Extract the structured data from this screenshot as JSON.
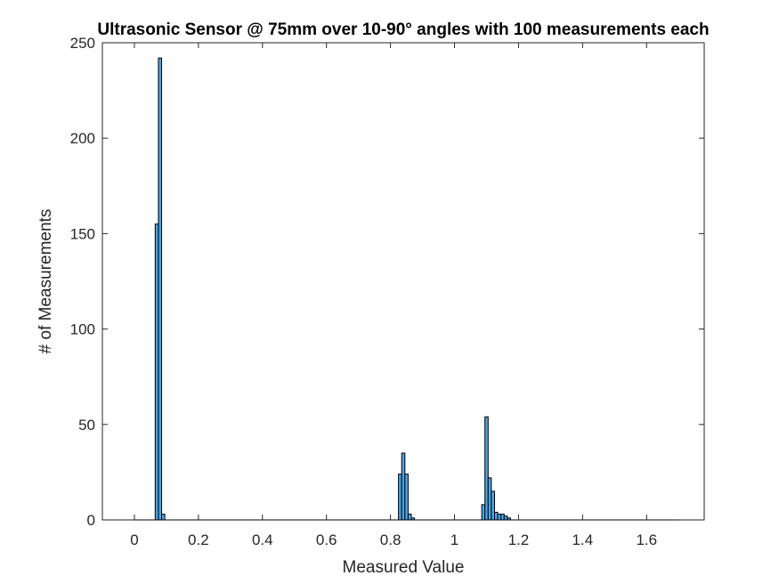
{
  "chart_data": {
    "type": "bar",
    "title": "Ultrasonic Sensor @ 75mm over 10-90° angles with 100 measurements each",
    "xlabel": "Measured Value",
    "ylabel": "# of Measurements",
    "xlim": [
      -0.1,
      1.78
    ],
    "ylim": [
      0,
      250
    ],
    "xticks": [
      0,
      0.2,
      0.4,
      0.6,
      0.8,
      1,
      1.2,
      1.4,
      1.6
    ],
    "xtick_labels": [
      "0",
      "0.2",
      "0.4",
      "0.6",
      "0.8",
      "1",
      "1.2",
      "1.4",
      "1.6"
    ],
    "yticks": [
      0,
      50,
      100,
      150,
      200,
      250
    ],
    "ytick_labels": [
      "0",
      "50",
      "100",
      "150",
      "200",
      "250"
    ],
    "bin_width": 0.01,
    "baseline_range": [
      0,
      1.7
    ],
    "grid": false,
    "bar_color": "#4DA6E5",
    "bar_edge_color": "#000000",
    "bins": [
      {
        "x": 0.07,
        "count": 155
      },
      {
        "x": 0.08,
        "count": 242
      },
      {
        "x": 0.09,
        "count": 3
      },
      {
        "x": 0.83,
        "count": 24
      },
      {
        "x": 0.84,
        "count": 35
      },
      {
        "x": 0.85,
        "count": 24
      },
      {
        "x": 0.86,
        "count": 3
      },
      {
        "x": 0.87,
        "count": 1
      },
      {
        "x": 1.09,
        "count": 8
      },
      {
        "x": 1.1,
        "count": 54
      },
      {
        "x": 1.11,
        "count": 22
      },
      {
        "x": 1.12,
        "count": 15
      },
      {
        "x": 1.13,
        "count": 4
      },
      {
        "x": 1.14,
        "count": 3
      },
      {
        "x": 1.15,
        "count": 3
      },
      {
        "x": 1.16,
        "count": 2
      },
      {
        "x": 1.17,
        "count": 1
      }
    ]
  }
}
